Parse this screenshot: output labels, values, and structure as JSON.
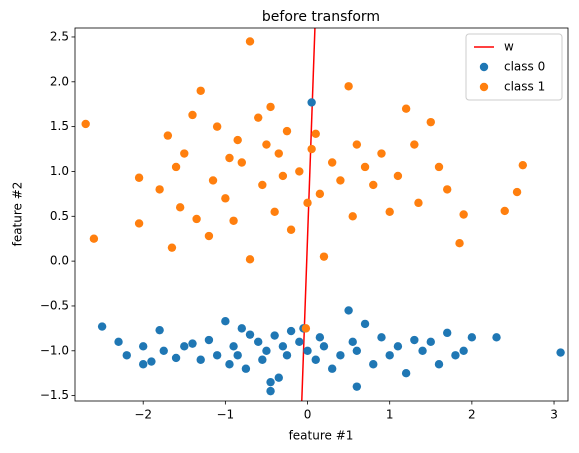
{
  "chart_data": {
    "type": "scatter",
    "title": "before transform",
    "x_label": "feature #1",
    "y_label": "feature #2",
    "xlim": [
      -2.83,
      3.17
    ],
    "ylim": [
      -1.56,
      2.6
    ],
    "xticks": [
      {
        "value": -2,
        "label": "−2"
      },
      {
        "value": -1,
        "label": "−1"
      },
      0,
      1,
      2,
      3
    ],
    "yticks": [
      {
        "value": -1.5,
        "label": "−1.5"
      },
      {
        "value": -1.0,
        "label": "−1.0"
      },
      {
        "value": -0.5,
        "label": "−0.5"
      },
      {
        "value": 0,
        "label": "0.0"
      },
      0.5,
      {
        "value": 1,
        "label": "1.0"
      },
      1.5,
      {
        "value": 2,
        "label": "2.0"
      },
      2.5
    ],
    "legend": "upper right",
    "series": [
      {
        "name": "w",
        "kind": "line",
        "color": "#ff0000",
        "x": [
          -0.07,
          0.09
        ],
        "y": [
          -1.56,
          2.6
        ]
      },
      {
        "name": "class 0",
        "kind": "scatter",
        "color": "#1f77b4",
        "x": [
          -2.5,
          -2.3,
          -2.2,
          -2.0,
          -2.0,
          -1.9,
          -1.8,
          -1.75,
          -1.6,
          -1.5,
          -1.4,
          -1.3,
          -1.2,
          -1.1,
          -1.0,
          -0.95,
          -0.9,
          -0.85,
          -0.8,
          -0.75,
          -0.7,
          -0.6,
          -0.55,
          -0.5,
          -0.45,
          -0.4,
          -0.35,
          -0.3,
          -0.25,
          -0.2,
          -0.1,
          0.0,
          0.1,
          0.15,
          0.2,
          0.3,
          0.4,
          0.5,
          0.55,
          0.6,
          0.7,
          0.8,
          0.9,
          1.0,
          1.1,
          1.2,
          1.3,
          1.4,
          1.5,
          1.6,
          1.7,
          1.8,
          1.9,
          2.0,
          2.3,
          3.08,
          0.05,
          -0.45,
          0.6,
          -0.05
        ],
        "y": [
          -0.73,
          -0.9,
          -1.05,
          -0.95,
          -1.15,
          -1.12,
          -0.77,
          -1.0,
          -1.08,
          -0.95,
          -0.92,
          -1.1,
          -0.88,
          -1.05,
          -0.67,
          -1.15,
          -0.95,
          -1.05,
          -0.75,
          -1.2,
          -0.82,
          -0.9,
          -1.1,
          -1.0,
          -1.45,
          -0.83,
          -1.3,
          -0.95,
          -1.05,
          -0.78,
          -0.9,
          -1.0,
          -1.1,
          -0.85,
          -0.95,
          -1.2,
          -1.05,
          -0.55,
          -0.9,
          -1.0,
          -0.7,
          -1.15,
          -0.85,
          -1.05,
          -0.95,
          -1.25,
          -0.88,
          -1.0,
          -0.9,
          -1.15,
          -0.8,
          -1.05,
          -1.0,
          -0.85,
          -0.85,
          -1.02,
          1.77,
          -1.35,
          -1.4,
          -0.75
        ]
      },
      {
        "name": "class 1",
        "kind": "scatter",
        "color": "#ff7f0e",
        "x": [
          -2.7,
          -2.6,
          -2.05,
          -2.05,
          -1.8,
          -1.7,
          -1.65,
          -1.6,
          -1.55,
          -1.5,
          -1.4,
          -1.35,
          -1.3,
          -1.2,
          -1.15,
          -1.1,
          -1.0,
          -0.95,
          -0.9,
          -0.85,
          -0.8,
          -0.7,
          -0.7,
          -0.6,
          -0.55,
          -0.5,
          -0.45,
          -0.4,
          -0.35,
          -0.3,
          -0.25,
          -0.2,
          -0.1,
          0.0,
          0.05,
          0.1,
          0.15,
          0.2,
          0.3,
          0.4,
          0.5,
          0.55,
          0.6,
          0.7,
          0.8,
          0.9,
          1.0,
          1.1,
          1.2,
          1.3,
          1.35,
          1.5,
          1.6,
          1.7,
          1.85,
          1.9,
          2.4,
          2.55,
          2.62,
          -0.02
        ],
        "y": [
          1.53,
          0.25,
          0.93,
          0.42,
          0.8,
          1.4,
          0.15,
          1.05,
          0.6,
          1.2,
          1.63,
          0.47,
          1.9,
          0.28,
          0.9,
          1.5,
          0.7,
          1.15,
          0.45,
          1.35,
          1.1,
          2.45,
          0.02,
          1.6,
          0.85,
          1.3,
          1.72,
          0.55,
          1.2,
          0.95,
          1.45,
          0.35,
          1.0,
          0.65,
          1.25,
          1.42,
          0.75,
          0.05,
          1.1,
          0.9,
          1.95,
          0.5,
          1.3,
          1.05,
          0.85,
          1.2,
          0.55,
          0.95,
          1.7,
          1.3,
          0.65,
          1.55,
          1.05,
          0.8,
          0.2,
          0.52,
          0.56,
          0.77,
          1.07,
          -0.75
        ]
      }
    ]
  }
}
